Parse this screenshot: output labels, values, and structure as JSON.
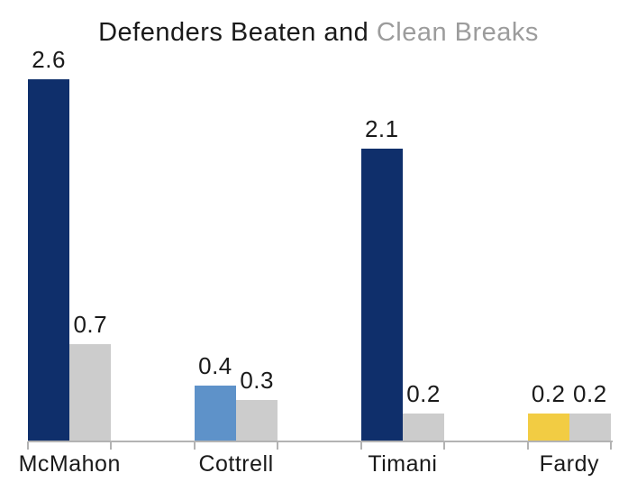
{
  "title": {
    "part1": "Defenders Beaten and ",
    "part2": "Clean Breaks"
  },
  "colors": {
    "title_text": "#1a1a1a",
    "title_highlight": "#9c9c9c",
    "label_text": "#1a1a1a",
    "axis": "#b3b3b3",
    "navy": "#0f2f6b",
    "blue": "#5e92c9",
    "yellow": "#f2cc43",
    "gray_bar": "#cccccc"
  },
  "chart_data": {
    "type": "bar",
    "title": "Defenders Beaten and Clean Breaks",
    "categories": [
      "McMahon",
      "Cottrell",
      "Timani",
      "Fardy"
    ],
    "series": [
      {
        "name": "Defenders Beaten",
        "values": [
          2.6,
          0.4,
          2.1,
          0.2
        ],
        "labels": [
          "2.6",
          "0.4",
          "2.1",
          "0.2"
        ],
        "colors": [
          "#0f2f6b",
          "#5e92c9",
          "#0f2f6b",
          "#f2cc43"
        ]
      },
      {
        "name": "Clean Breaks",
        "values": [
          0.7,
          0.3,
          0.2,
          0.2
        ],
        "labels": [
          "0.7",
          "0.3",
          "0.2",
          "0.2"
        ],
        "colors": [
          "#cccccc",
          "#cccccc",
          "#cccccc",
          "#cccccc"
        ]
      }
    ],
    "ylim": [
      0,
      2.8
    ],
    "grid": false,
    "legend": "encoded in title colors: dark text = Defenders Beaten bars, gray text = Clean Breaks bars",
    "value_labels_shown": true,
    "x_axis_tick_count": 8
  }
}
